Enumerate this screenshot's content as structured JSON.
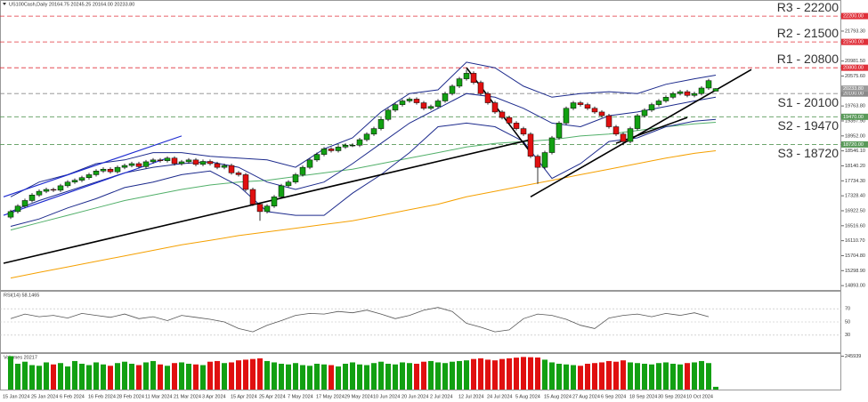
{
  "chart_data": {
    "type": "candlestick",
    "title": "US100Cash,Daily  20164.75 20245.25 20164.00 20233.80",
    "up_color": "#12a012",
    "down_color": "#e01010",
    "categories": [
      "15 Jan 2024",
      null,
      null,
      null,
      "25 Jan 2024",
      null,
      null,
      null,
      "6 Feb 2024",
      null,
      null,
      null,
      "16 Feb 2024",
      null,
      null,
      null,
      "28 Feb 2024",
      null,
      null,
      null,
      "11 Mar 2024",
      null,
      null,
      null,
      "21 Mar 2024",
      null,
      null,
      null,
      "3 Apr 2024",
      null,
      null,
      null,
      "15 Apr 2024",
      null,
      null,
      null,
      "25 Apr 2024",
      null,
      null,
      null,
      "7 May 2024",
      null,
      null,
      null,
      "17 May 2024",
      null,
      null,
      null,
      "29 May 2024",
      null,
      null,
      null,
      "10 Jun 2024",
      null,
      null,
      null,
      "20 Jun 2024",
      null,
      null,
      null,
      "2 Jul 2024",
      null,
      null,
      null,
      "12 Jul 2024",
      null,
      null,
      null,
      "24 Jul 2024",
      null,
      null,
      null,
      "5 Aug 2024",
      null,
      null,
      null,
      "15 Aug 2024",
      null,
      null,
      null,
      "27 Aug 2024",
      null,
      null,
      null,
      "6 Sep 2024",
      null,
      null,
      null,
      "18 Sep 2024",
      null,
      null,
      null,
      "30 Sep 2024",
      null,
      null,
      null,
      "10 Oct 2024",
      null,
      null,
      null
    ],
    "candles": {
      "open": [
        16750,
        16900,
        17050,
        17200,
        17350,
        17450,
        17500,
        17480,
        17600,
        17700,
        17750,
        17820,
        17900,
        18000,
        18050,
        17980,
        18100,
        18150,
        18200,
        18120,
        18250,
        18300,
        18280,
        18350,
        18200,
        18250,
        18300,
        18180,
        18260,
        18200,
        18100,
        18150,
        17950,
        17900,
        17500,
        17100,
        16900,
        17050,
        17300,
        17600,
        17700,
        17900,
        18100,
        18300,
        18450,
        18600,
        18550,
        18650,
        18700,
        18700,
        18850,
        19000,
        19150,
        19400,
        19650,
        19800,
        19900,
        19950,
        19850,
        19700,
        19750,
        19900,
        20100,
        20300,
        20500,
        20650,
        20400,
        20100,
        19850,
        19600,
        19450,
        19300,
        19150,
        19000,
        18400,
        18100,
        18500,
        18900,
        19300,
        19700,
        19850,
        19800,
        19700,
        19600,
        19500,
        19200,
        19000,
        18800,
        19150,
        19500,
        19650,
        19800,
        19900,
        20000,
        20100,
        20150,
        20050,
        20100,
        20250,
        20164.75
      ],
      "high": [
        16950,
        17100,
        17250,
        17400,
        17500,
        17550,
        17550,
        17650,
        17750,
        17800,
        17870,
        17950,
        18050,
        18100,
        18100,
        18150,
        18200,
        18250,
        18250,
        18300,
        18350,
        18350,
        18400,
        18400,
        18300,
        18350,
        18350,
        18310,
        18310,
        18250,
        18200,
        18200,
        18000,
        17950,
        17550,
        17150,
        17100,
        17350,
        17650,
        17750,
        17950,
        18150,
        18350,
        18500,
        18650,
        18650,
        18700,
        18750,
        18750,
        18900,
        19050,
        19200,
        19450,
        19700,
        19850,
        19950,
        20000,
        20000,
        19900,
        19800,
        19950,
        20150,
        20350,
        20550,
        20750,
        20700,
        20450,
        20150,
        19900,
        19650,
        19500,
        19350,
        19200,
        19050,
        18450,
        18550,
        18950,
        19350,
        19750,
        19900,
        19900,
        19850,
        19750,
        19650,
        19550,
        19250,
        19050,
        19200,
        19550,
        19700,
        19850,
        19950,
        20050,
        20150,
        20200,
        20200,
        20150,
        20300,
        20500,
        20245.25
      ],
      "low": [
        16700,
        16850,
        17000,
        17150,
        17300,
        17400,
        17430,
        17430,
        17550,
        17650,
        17700,
        17770,
        17850,
        17950,
        17930,
        17930,
        18050,
        18100,
        18070,
        18070,
        18200,
        18230,
        18230,
        18150,
        18150,
        18200,
        18130,
        18130,
        18150,
        18050,
        18050,
        17900,
        17850,
        17450,
        17050,
        16650,
        16850,
        17000,
        17250,
        17550,
        17650,
        17850,
        18050,
        18250,
        18400,
        18500,
        18500,
        18600,
        18650,
        18650,
        18800,
        18950,
        19100,
        19350,
        19600,
        19750,
        19850,
        19800,
        19650,
        19650,
        19700,
        19850,
        20050,
        20250,
        20450,
        20350,
        20050,
        19800,
        19550,
        19400,
        19250,
        19100,
        18950,
        18350,
        17650,
        18050,
        18450,
        18850,
        19250,
        19650,
        19750,
        19650,
        19550,
        19450,
        19150,
        18950,
        18700,
        18750,
        19100,
        19450,
        19600,
        19750,
        19850,
        19950,
        20050,
        20000,
        20000,
        20050,
        20200,
        20164
      ],
      "close": [
        16900,
        17050,
        17200,
        17350,
        17450,
        17500,
        17480,
        17600,
        17700,
        17750,
        17820,
        17900,
        18000,
        18050,
        17980,
        18100,
        18150,
        18200,
        18120,
        18250,
        18300,
        18280,
        18350,
        18200,
        18250,
        18300,
        18180,
        18260,
        18200,
        18100,
        18150,
        17950,
        17900,
        17500,
        17100,
        16900,
        17050,
        17300,
        17600,
        17700,
        17900,
        18100,
        18300,
        18450,
        18600,
        18550,
        18650,
        18700,
        18700,
        18850,
        19000,
        19150,
        19400,
        19650,
        19800,
        19900,
        19950,
        19850,
        19700,
        19750,
        19900,
        20100,
        20300,
        20500,
        20650,
        20400,
        20100,
        19850,
        19600,
        19450,
        19300,
        19150,
        19000,
        18400,
        18100,
        18500,
        18900,
        19300,
        19700,
        19850,
        19800,
        19700,
        19600,
        19500,
        19200,
        19000,
        18800,
        19150,
        19500,
        19650,
        19800,
        19900,
        20000,
        20100,
        20150,
        20050,
        20100,
        20250,
        20450,
        20233.8
      ]
    },
    "ylim": [
      14800,
      22540
    ],
    "yticks": [
      {
        "value": 14893.0,
        "label": "14893.00"
      },
      {
        "value": 15298.9,
        "label": "15298.90"
      },
      {
        "value": 15704.8,
        "label": "15704.80"
      },
      {
        "value": 16110.7,
        "label": "16110.70"
      },
      {
        "value": 16516.6,
        "label": "16516.60"
      },
      {
        "value": 16922.5,
        "label": "16922.50"
      },
      {
        "value": 17328.4,
        "label": "17328.40"
      },
      {
        "value": 17734.3,
        "label": "17734.30"
      },
      {
        "value": 18140.2,
        "label": "18140.20"
      },
      {
        "value": 18546.1,
        "label": "18546.10"
      },
      {
        "value": 18952.0,
        "label": "18952.00"
      },
      {
        "value": 19357.9,
        "label": "19357.90"
      },
      {
        "value": 19763.8,
        "label": "19763.80"
      },
      {
        "value": 20575.6,
        "label": "20575.60"
      },
      {
        "value": 20981.5,
        "label": "20981.50"
      },
      {
        "value": 21793.3,
        "label": "21793.30"
      }
    ],
    "current_price": {
      "value": 20233.8,
      "label": "20233.80"
    },
    "levels": [
      {
        "label": "R3 - 22200",
        "value": 22200,
        "axis_label": "22200.00",
        "color": "#e0303a"
      },
      {
        "label": "R2 - 21500",
        "value": 21500,
        "axis_label": "21500.00",
        "color": "#e0303a"
      },
      {
        "label": "R1 - 20800",
        "value": 20800,
        "axis_label": "20800.00",
        "color": "#e0303a"
      },
      {
        "label": "S1 - 20100",
        "value": 20100,
        "axis_label": "20100.00",
        "color": "#8a8a8a"
      },
      {
        "label": "S2 - 19470",
        "value": 19470,
        "axis_label": "19470.00",
        "color": "#5a9a5a"
      },
      {
        "label": "S3 - 18720",
        "value": 18720,
        "axis_label": "18720.00",
        "color": "#5a9a5a"
      }
    ],
    "indicators": [
      {
        "color": "#f5a000",
        "x": [
          0,
          4,
          8,
          12,
          16,
          20,
          24,
          28,
          32,
          36,
          40,
          44,
          48,
          52,
          56,
          60,
          64,
          68,
          72,
          76,
          80,
          84,
          88,
          92,
          96,
          99
        ],
        "values": [
          15100,
          15250,
          15400,
          15550,
          15700,
          15850,
          16000,
          16120,
          16250,
          16350,
          16450,
          16550,
          16650,
          16800,
          16950,
          17100,
          17300,
          17450,
          17600,
          17750,
          17900,
          18050,
          18200,
          18350,
          18480,
          18550
        ]
      },
      {
        "color": "#52b06a",
        "x": [
          0,
          4,
          8,
          12,
          16,
          20,
          24,
          28,
          32,
          36,
          40,
          44,
          48,
          52,
          56,
          60,
          64,
          68,
          72,
          76,
          80,
          84,
          88,
          92,
          96,
          99
        ],
        "values": [
          16400,
          16600,
          16800,
          17000,
          17200,
          17350,
          17500,
          17620,
          17700,
          17750,
          17850,
          17950,
          18050,
          18200,
          18350,
          18500,
          18650,
          18750,
          18800,
          18850,
          18950,
          19000,
          19100,
          19200,
          19280,
          19320
        ]
      },
      {
        "color": "#1c2a8c",
        "x": [
          0,
          4,
          8,
          12,
          16,
          20,
          24,
          28,
          32,
          36,
          40,
          44,
          48,
          52,
          56,
          60,
          64,
          68,
          72,
          76,
          80,
          84,
          88,
          92,
          96,
          99
        ],
        "values": [
          17300,
          17700,
          17900,
          18200,
          18300,
          18500,
          18500,
          18400,
          18350,
          18300,
          18100,
          18600,
          18900,
          19600,
          20100,
          20200,
          20950,
          20800,
          20300,
          20000,
          20100,
          20150,
          20100,
          20350,
          20500,
          20600
        ]
      },
      {
        "color": "#1c2a8c",
        "x": [
          0,
          4,
          8,
          12,
          16,
          20,
          24,
          28,
          32,
          36,
          40,
          44,
          48,
          52,
          56,
          60,
          64,
          68,
          72,
          76,
          80,
          84,
          88,
          92,
          96,
          99
        ],
        "values": [
          16900,
          17200,
          17450,
          17700,
          17950,
          18100,
          18200,
          18250,
          18100,
          17700,
          17500,
          17700,
          18200,
          18750,
          19300,
          19700,
          20100,
          20000,
          19700,
          19300,
          19200,
          19500,
          19600,
          19750,
          19900,
          20000
        ]
      },
      {
        "color": "#1c2a8c",
        "x": [
          0,
          4,
          8,
          12,
          16,
          20,
          24,
          28,
          32,
          36,
          40,
          44,
          48,
          52,
          56,
          60,
          64,
          68,
          72,
          76,
          80,
          84,
          88,
          92,
          96,
          99
        ],
        "values": [
          16500,
          16700,
          17000,
          17250,
          17550,
          17700,
          17900,
          18000,
          17600,
          16900,
          16800,
          16800,
          17400,
          17900,
          18500,
          19200,
          19300,
          19200,
          18800,
          17800,
          18200,
          18800,
          18900,
          19200,
          19350,
          19400
        ]
      }
    ],
    "trendlines": [
      {
        "color": "#000000",
        "x": [
          -1,
          73
        ],
        "y": [
          15500,
          18850
        ]
      },
      {
        "color": "#000000",
        "x": [
          64,
          73
        ],
        "y": [
          20800,
          18500
        ]
      },
      {
        "color": "#000000",
        "x": [
          73,
          104
        ],
        "y": [
          17300,
          20750
        ]
      },
      {
        "color": "#000000",
        "x": [
          85,
          95
        ],
        "y": [
          18750,
          19450
        ]
      },
      {
        "color": "#1c2ad0",
        "x": [
          -1,
          24
        ],
        "y": [
          17300,
          18950
        ]
      },
      {
        "color": "#1c2ad0",
        "x": [
          -1,
          22
        ],
        "y": [
          16800,
          18350
        ]
      }
    ],
    "rsi": {
      "title": "RSI(14) 58.1465",
      "ylim": [
        4,
        96
      ],
      "yticks": [
        30,
        50,
        70
      ],
      "color": "#555555",
      "x": [
        0,
        2,
        4,
        6,
        8,
        10,
        12,
        14,
        16,
        18,
        20,
        22,
        24,
        26,
        28,
        30,
        32,
        34,
        36,
        38,
        40,
        42,
        44,
        46,
        48,
        50,
        52,
        54,
        56,
        58,
        60,
        62,
        64,
        66,
        68,
        70,
        72,
        74,
        76,
        78,
        80,
        82,
        84,
        86,
        88,
        90,
        92,
        94,
        96,
        98
      ],
      "values": [
        55,
        62,
        58,
        60,
        56,
        63,
        60,
        57,
        62,
        55,
        58,
        52,
        60,
        57,
        54,
        50,
        40,
        35,
        45,
        52,
        60,
        63,
        62,
        66,
        64,
        68,
        62,
        55,
        60,
        68,
        72,
        66,
        48,
        42,
        35,
        38,
        55,
        62,
        60,
        54,
        45,
        40,
        56,
        60,
        62,
        58,
        63,
        60,
        64,
        58
      ]
    },
    "volume": {
      "title": "Volumes 20217",
      "ylim": [
        0,
        262000
      ],
      "yticks": [
        245939
      ],
      "values": [
        245939,
        190000,
        205000,
        180000,
        175000,
        200000,
        185000,
        195000,
        170000,
        210000,
        190000,
        180000,
        200000,
        185000,
        175000,
        195000,
        205000,
        190000,
        180000,
        200000,
        210000,
        185000,
        175000,
        195000,
        200000,
        190000,
        185000,
        180000,
        205000,
        210000,
        195000,
        200000,
        215000,
        220000,
        225000,
        230000,
        210000,
        200000,
        190000,
        185000,
        195000,
        180000,
        175000,
        190000,
        185000,
        180000,
        170000,
        190000,
        200000,
        185000,
        180000,
        195000,
        205000,
        190000,
        185000,
        200000,
        195000,
        190000,
        205000,
        210000,
        200000,
        195000,
        205000,
        210000,
        215000,
        225000,
        230000,
        220000,
        215000,
        225000,
        230000,
        235000,
        240000,
        238000,
        236000,
        220000,
        200000,
        190000,
        185000,
        180000,
        175000,
        190000,
        195000,
        200000,
        210000,
        205000,
        215000,
        200000,
        195000,
        190000,
        185000,
        195000,
        200000,
        190000,
        185000,
        195000,
        200000,
        210000,
        195000,
        20217
      ]
    }
  }
}
